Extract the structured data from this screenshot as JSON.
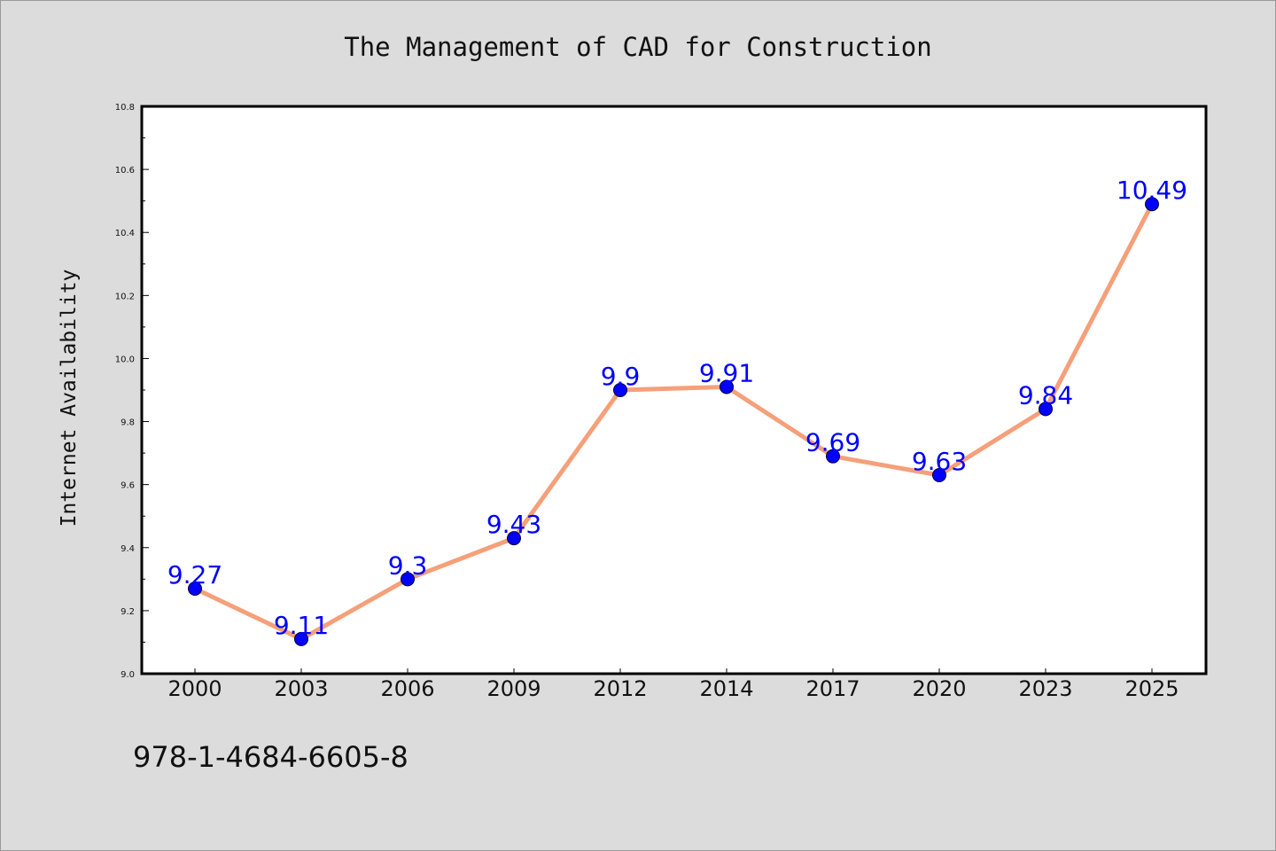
{
  "colors": {
    "background": "#dcdcdc",
    "plot_background": "#ffffff",
    "line": "#f5a07a",
    "marker": "#0000ff",
    "data_label": "#0000ff",
    "text": "#111111"
  },
  "footer_text": "978-1-4684-6605-8",
  "chart_data": {
    "type": "line",
    "title": "The Management of CAD for Construction",
    "xlabel": "",
    "ylabel": "Internet Availability",
    "categories": [
      "2000",
      "2003",
      "2006",
      "2009",
      "2012",
      "2014",
      "2017",
      "2020",
      "2023",
      "2025"
    ],
    "series": [
      {
        "values": [
          9.27,
          9.11,
          9.3,
          9.43,
          9.9,
          9.91,
          9.69,
          9.63,
          9.84,
          10.49
        ],
        "labels": [
          "9.27",
          "9.11",
          "9.3",
          "9.43",
          "9.9",
          "9.91",
          "9.69",
          "9.63",
          "9.84",
          "10.49"
        ]
      }
    ],
    "ylim": [
      9.0,
      10.8
    ],
    "yticks": [
      "9.0",
      "9.2",
      "9.4",
      "9.6",
      "9.8",
      "10.0",
      "10.2",
      "10.4",
      "10.6",
      "10.8"
    ],
    "grid": false,
    "legend": "none"
  }
}
